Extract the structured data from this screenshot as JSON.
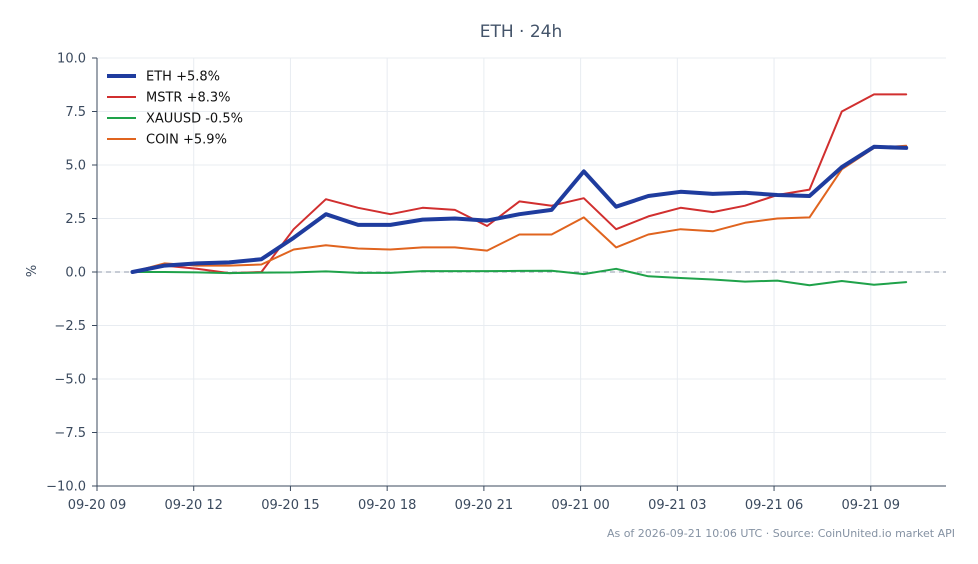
{
  "chart_data": {
    "type": "line",
    "title": "ETH · 24h",
    "xlabel": "",
    "ylabel": "%",
    "ylim": [
      -10,
      10
    ],
    "yticks": [
      -10.0,
      -7.5,
      -5.0,
      -2.5,
      0.0,
      2.5,
      5.0,
      7.5,
      10.0
    ],
    "ytick_labels": [
      "−10.0",
      "−7.5",
      "−5.0",
      "−2.5",
      "0.0",
      "2.5",
      "5.0",
      "7.5",
      "10.0"
    ],
    "xlim": [
      "2026-09-20 09:00",
      "2026-09-21 11:20"
    ],
    "xticks": [
      "2026-09-20 09:00",
      "2026-09-20 12:00",
      "2026-09-20 15:00",
      "2026-09-20 18:00",
      "2026-09-20 21:00",
      "2026-09-21 00:00",
      "2026-09-21 03:00",
      "2026-09-21 06:00",
      "2026-09-21 09:00"
    ],
    "xtick_labels": [
      "09-20 09",
      "09-20 12",
      "09-20 15",
      "09-20 18",
      "09-20 21",
      "09-21 00",
      "09-21 03",
      "09-21 06",
      "09-21 09"
    ],
    "x": [
      "2026-09-20 10:06",
      "2026-09-20 11:06",
      "2026-09-20 12:06",
      "2026-09-20 13:06",
      "2026-09-20 14:06",
      "2026-09-20 15:06",
      "2026-09-20 16:06",
      "2026-09-20 17:06",
      "2026-09-20 18:06",
      "2026-09-20 19:06",
      "2026-09-20 20:06",
      "2026-09-20 21:06",
      "2026-09-20 22:06",
      "2026-09-20 23:06",
      "2026-09-21 00:06",
      "2026-09-21 01:06",
      "2026-09-21 02:06",
      "2026-09-21 03:06",
      "2026-09-21 04:06",
      "2026-09-21 05:06",
      "2026-09-21 06:06",
      "2026-09-21 07:06",
      "2026-09-21 08:06",
      "2026-09-21 09:06",
      "2026-09-21 10:06"
    ],
    "grid": true,
    "baseline": 0,
    "legend_position": "top-left",
    "series": [
      {
        "name": "ETH +5.8%",
        "color": "#1f3c9e",
        "values": [
          0.0,
          0.3,
          0.4,
          0.45,
          0.6,
          1.6,
          2.7,
          2.2,
          2.2,
          2.45,
          2.5,
          2.4,
          2.7,
          2.9,
          4.7,
          3.05,
          3.55,
          3.75,
          3.65,
          3.7,
          3.6,
          3.55,
          4.9,
          5.85,
          5.8
        ]
      },
      {
        "name": "MSTR +8.3%",
        "color": "#d12f2f",
        "values": [
          0.0,
          0.3,
          0.15,
          -0.05,
          0.0,
          2.0,
          3.4,
          3.0,
          2.7,
          3.0,
          2.9,
          2.15,
          3.3,
          3.1,
          3.45,
          2.0,
          2.6,
          3.0,
          2.8,
          3.1,
          3.6,
          3.85,
          7.5,
          8.3,
          8.3
        ]
      },
      {
        "name": "XAUUSD -0.5%",
        "color": "#1fa24a",
        "values": [
          0.0,
          0.0,
          -0.02,
          -0.05,
          -0.03,
          -0.02,
          0.03,
          -0.04,
          -0.04,
          0.04,
          0.04,
          0.04,
          0.05,
          0.06,
          -0.1,
          0.15,
          -0.2,
          -0.28,
          -0.35,
          -0.45,
          -0.4,
          -0.62,
          -0.42,
          -0.6,
          -0.47
        ]
      },
      {
        "name": "COIN +5.9%",
        "color": "#e0641f",
        "values": [
          0.0,
          0.4,
          0.3,
          0.3,
          0.35,
          1.05,
          1.25,
          1.1,
          1.05,
          1.15,
          1.15,
          1.0,
          1.75,
          1.75,
          2.55,
          1.15,
          1.75,
          2.0,
          1.9,
          2.3,
          2.5,
          2.55,
          4.8,
          5.8,
          5.9
        ]
      }
    ],
    "footer": "As of 2026-09-21 10:06 UTC · Source: CoinUnited.io market API"
  }
}
